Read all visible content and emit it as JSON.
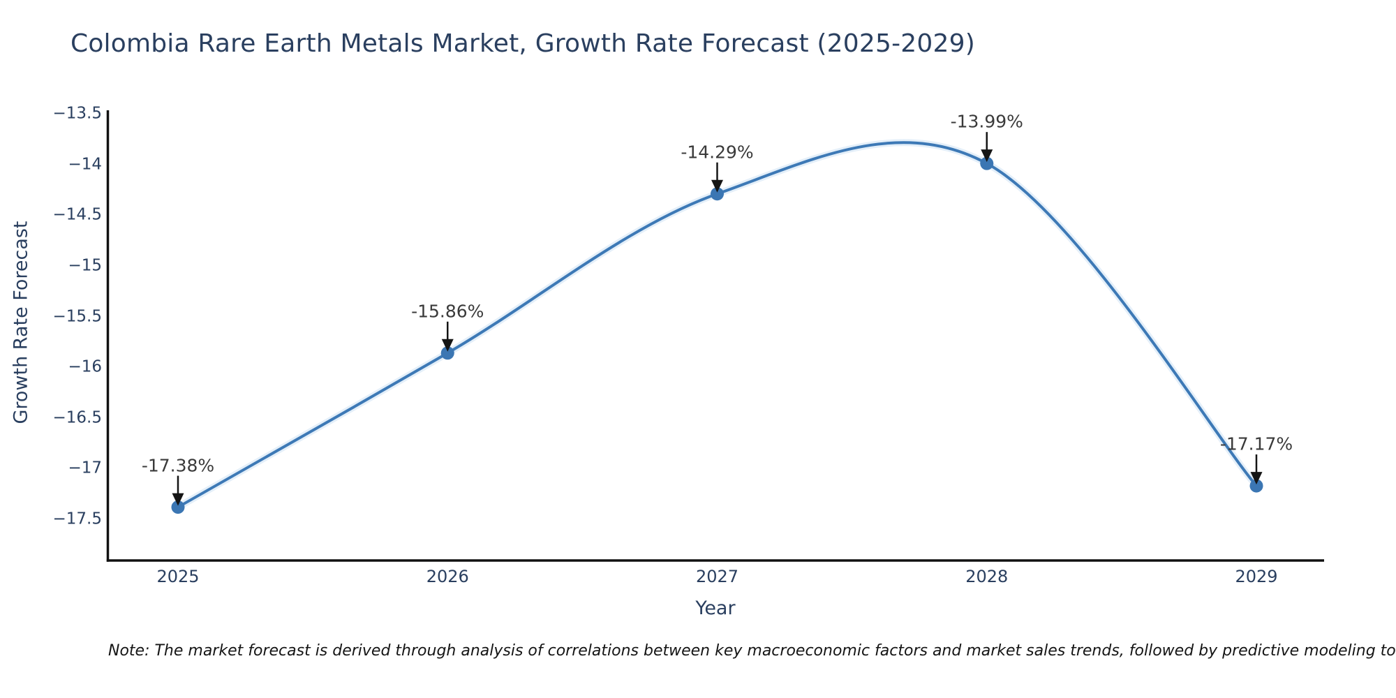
{
  "title": "Colombia Rare Earth Metals Market, Growth Rate Forecast (2025-2029)",
  "axes": {
    "x_title": "Year",
    "y_title": "Growth Rate Forecast",
    "x_ticks": [
      "2025",
      "2026",
      "2027",
      "2028",
      "2029"
    ],
    "y_ticks": [
      {
        "label": "−13.5",
        "value": -13.5
      },
      {
        "label": "−14",
        "value": -14
      },
      {
        "label": "−14.5",
        "value": -14.5
      },
      {
        "label": "−15",
        "value": -15
      },
      {
        "label": "−15.5",
        "value": -15.5
      },
      {
        "label": "−16",
        "value": -16
      },
      {
        "label": "−16.5",
        "value": -16.5
      },
      {
        "label": "−17",
        "value": -17
      },
      {
        "label": "−17.5",
        "value": -17.5
      }
    ]
  },
  "footnote": "Note: The market forecast is derived through analysis of correlations between key macroeconomic factors and market sales trends, followed by predictive modeling to project future s",
  "colors": {
    "line": "#3d79b6",
    "line_halo": "#d9e8f6",
    "marker": "#3b76b3",
    "arrow": "#151515",
    "axis": "#111111",
    "title_text": "#2a3f5f",
    "tick_text": "#2a3f5f",
    "annotation_text": "#3a3a3a",
    "note_text": "#151515",
    "background": "#ffffff"
  },
  "chart_data": {
    "type": "line",
    "title": "Colombia Rare Earth Metals Market, Growth Rate Forecast (2025-2029)",
    "xlabel": "Year",
    "ylabel": "Growth Rate Forecast",
    "x": [
      2025,
      2026,
      2027,
      2028,
      2029
    ],
    "series": [
      {
        "name": "Growth Rate Forecast",
        "values": [
          -17.38,
          -15.86,
          -14.29,
          -13.99,
          -17.17
        ]
      }
    ],
    "point_labels": [
      "-17.38%",
      "-15.86%",
      "-14.29%",
      "-13.99%",
      "-17.17%"
    ],
    "ylim": [
      -17.9,
      -13.47
    ],
    "xlim": [
      2024.74,
      2029.25
    ],
    "line_shape": "spline",
    "markers": "circle",
    "grid": false,
    "legend": "none",
    "annotations": "value-labels-with-down-arrows"
  }
}
